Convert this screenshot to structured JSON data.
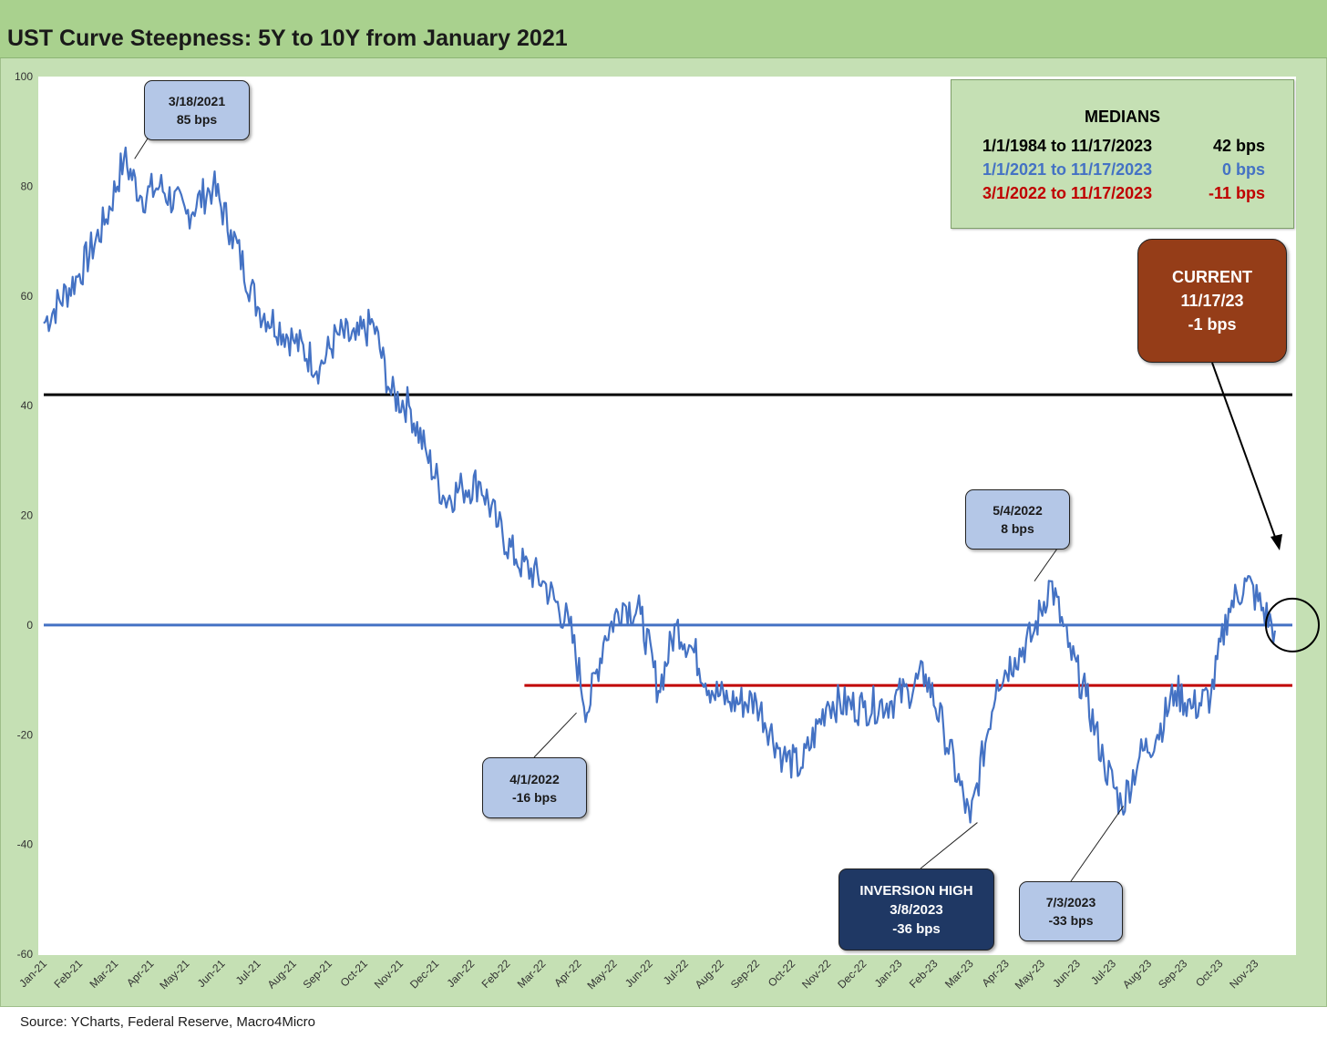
{
  "title": "UST Curve Steepness: 5Y to 10Y from January 2021",
  "source": "Source: YCharts, Federal Reserve, Macro4Micro",
  "colors": {
    "series": "#4472c4",
    "median_long": "#000000",
    "median_2021": "#4472c4",
    "median_2022": "#c00000",
    "frame": "#c5e0b4",
    "title_bar": "#a9d18e",
    "callout_light": "#b4c7e7",
    "callout_dark": "#1f3864",
    "callout_current": "#953d18"
  },
  "medians": {
    "title": "MEDIANS",
    "rows": [
      {
        "range": "1/1/1984 to 11/17/2023",
        "value": "42 bps",
        "color": "#000000"
      },
      {
        "range": "1/1/2021 to 11/17/2023",
        "value": "0 bps",
        "color": "#4472c4"
      },
      {
        "range": "3/1/2022 to 11/17/2023",
        "value": "-11 bps",
        "color": "#c00000"
      }
    ]
  },
  "callouts": {
    "c1": {
      "date": "3/18/2021",
      "value": "85 bps"
    },
    "c2": {
      "date": "4/1/2022",
      "value": "-16 bps"
    },
    "c3": {
      "date": "5/4/2022",
      "value": "8 bps"
    },
    "c4": {
      "label": "INVERSION HIGH",
      "date": "3/8/2023",
      "value": "-36 bps"
    },
    "c5": {
      "date": "7/3/2023",
      "value": "-33 bps"
    },
    "current": {
      "label": "CURRENT",
      "date": "11/17/23",
      "value": "-1 bps"
    }
  },
  "chart_data": {
    "type": "line",
    "title": "UST Curve Steepness: 5Y to 10Y from January 2021",
    "xlabel": "",
    "ylabel": "",
    "ylim": [
      -60,
      100
    ],
    "yticks": [
      100,
      80,
      60,
      40,
      20,
      0,
      -20,
      -40,
      -60
    ],
    "xticks": [
      "Jan-21",
      "Feb-21",
      "Mar-21",
      "Apr-21",
      "May-21",
      "Jun-21",
      "Jul-21",
      "Aug-21",
      "Sep-21",
      "Oct-21",
      "Nov-21",
      "Dec-21",
      "Jan-22",
      "Feb-22",
      "Mar-22",
      "Apr-22",
      "May-22",
      "Jun-22",
      "Jul-22",
      "Aug-22",
      "Sep-22",
      "Oct-22",
      "Nov-22",
      "Dec-22",
      "Jan-23",
      "Feb-23",
      "Mar-23",
      "Apr-23",
      "May-23",
      "Jun-23",
      "Jul-23",
      "Aug-23",
      "Sep-23",
      "Oct-23",
      "Nov-23"
    ],
    "grid": false,
    "reference_lines": [
      {
        "y": 42,
        "from": "Jan-21",
        "color": "#000000"
      },
      {
        "y": 0,
        "from": "Jan-21",
        "color": "#4472c4"
      },
      {
        "y": -11,
        "from": "Mar-22",
        "color": "#c00000"
      }
    ],
    "series": [
      {
        "x": [
          "Jan-21",
          "Feb-21",
          "Mar-21",
          "Mar-21",
          "Apr-21",
          "Apr-21",
          "May-21",
          "Jun-21",
          "Jun-21",
          "Jul-21",
          "Aug-21",
          "Sep-21",
          "Sep-21",
          "Oct-21",
          "Oct-21",
          "Nov-21",
          "Nov-21",
          "Dec-21",
          "Dec-21",
          "Jan-22",
          "Jan-22",
          "Feb-22",
          "Feb-22",
          "Mar-22",
          "Apr-22",
          "Apr-22",
          "May-22",
          "May-22",
          "Jun-22",
          "Jun-22",
          "Jul-22",
          "Jul-22",
          "Aug-22",
          "Aug-22",
          "Sep-22",
          "Oct-22",
          "Oct-22",
          "Nov-22",
          "Dec-22",
          "Jan-23",
          "Jan-23",
          "Feb-23",
          "Feb-23",
          "Mar-23",
          "Apr-23",
          "Apr-23",
          "May-23",
          "May-23",
          "Jun-23",
          "Jun-23",
          "Jul-23",
          "Jul-23",
          "Aug-23",
          "Aug-23",
          "Sep-23",
          "Sep-23",
          "Oct-23",
          "Oct-23",
          "Nov-23",
          "Nov-23"
        ],
        "values": [
          55,
          64,
          74,
          85,
          78,
          80,
          75,
          80,
          72,
          58,
          52,
          47,
          53,
          52,
          55,
          42,
          40,
          31,
          23,
          25,
          26,
          18,
          12,
          8,
          0,
          -16,
          -2,
          4,
          2,
          -12,
          0,
          -5,
          -12,
          -14,
          -14,
          -24,
          -26,
          -14,
          -15,
          -14,
          -12,
          -9,
          -19,
          -36,
          -10,
          -6,
          -2,
          8,
          -4,
          -13,
          -25,
          -33,
          -24,
          -20,
          -12,
          -15,
          -13,
          3,
          8,
          -1
        ]
      }
    ]
  }
}
